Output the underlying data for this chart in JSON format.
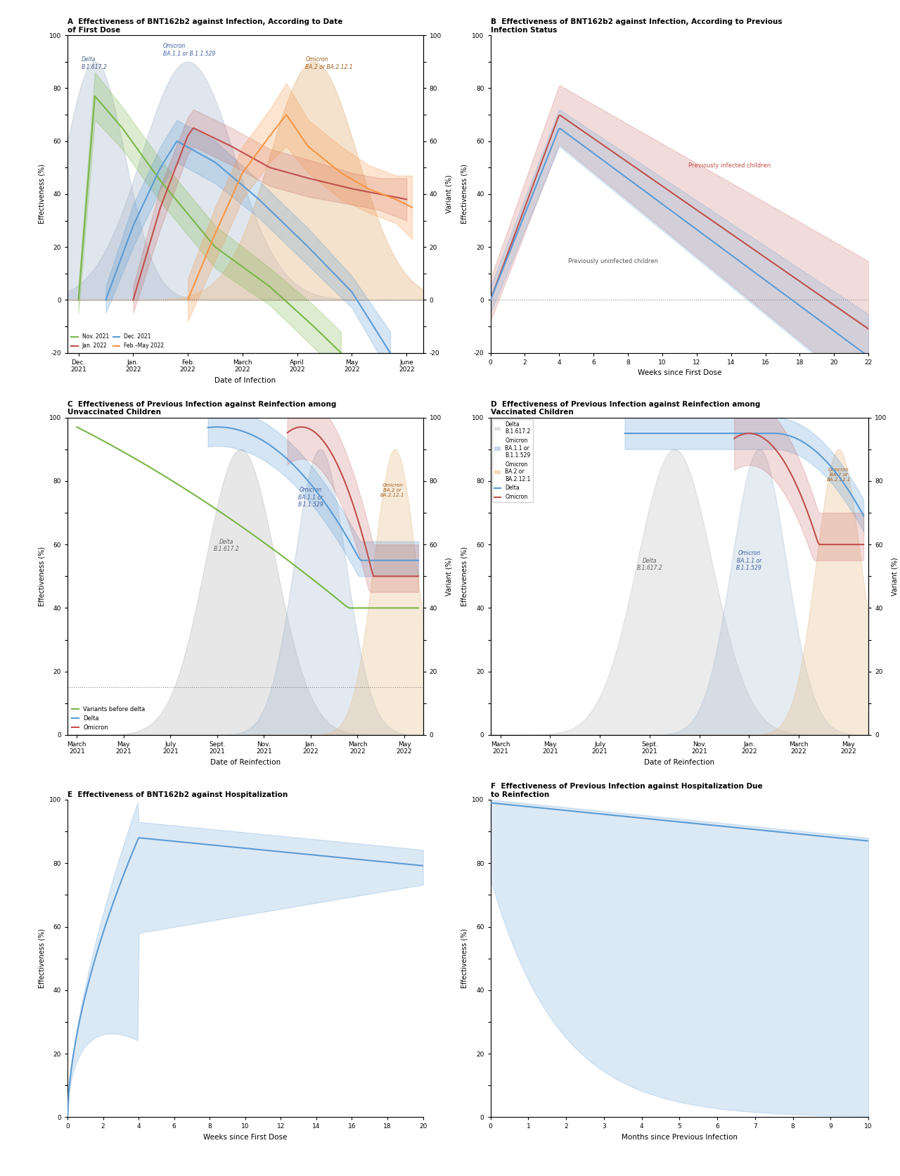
{
  "fig_width": 12.8,
  "fig_height": 16.72,
  "background_color": "#ffffff",
  "panel_titles": {
    "A": "Effectiveness of BNT162b2 against Infection, According to Date\nof First Dose",
    "B": "Effectiveness of BNT162b2 against Infection, According to Previous\nInfection Status",
    "C": "Effectiveness of Previous Infection against Reinfection among\nUnvaccinated Children",
    "D": "Effectiveness of Previous Infection against Reinfection among\nVaccinated Children",
    "E": "Effectiveness of BNT162b2 against Hospitalization",
    "F": "Effectiveness of Previous Infection against Hospitalization Due\nto Reinfection"
  },
  "colors": {
    "green": "#7ab648",
    "blue": "#5b9bd5",
    "red": "#c0504d",
    "orange": "#f79646",
    "gray": "#808080"
  },
  "panel_A": {
    "xlabel": "Date of Infection",
    "ylabel_left": "Effectiveness (%)",
    "ylabel_right": "Variant (%)",
    "xtick_labels": [
      "Dec.\n2021",
      "Jan.\n2022",
      "Feb.\n2022",
      "March\n2022",
      "April\n2022",
      "May\n2022",
      "June\n2022"
    ]
  },
  "panel_B": {
    "xlabel": "Weeks since First Dose",
    "ylabel_left": "Effectiveness (%)"
  },
  "panel_C": {
    "xlabel": "Date of Reinfection",
    "ylabel_left": "Effectiveness (%)",
    "ylabel_right": "Variant (%)",
    "xtick_labels": [
      "March\n2021",
      "May\n2021",
      "July\n2021",
      "Sept.\n2021",
      "Nov.\n2021",
      "Jan.\n2022",
      "March\n2022",
      "May\n2022"
    ]
  },
  "panel_D": {
    "xlabel": "Date of Reinfection",
    "ylabel_left": "Effectiveness (%)",
    "ylabel_right": "Variant (%)",
    "xtick_labels": [
      "March\n2021",
      "May\n2021",
      "July\n2021",
      "Sept.\n2021",
      "Nov.\n2021",
      "Jan.\n2022",
      "March\n2022",
      "May\n2022"
    ]
  },
  "panel_E": {
    "xlabel": "Weeks since First Dose",
    "ylabel_left": "Effectiveness (%)"
  },
  "panel_F": {
    "xlabel": "Months since Previous Infection",
    "ylabel_left": "Effectiveness (%)"
  }
}
